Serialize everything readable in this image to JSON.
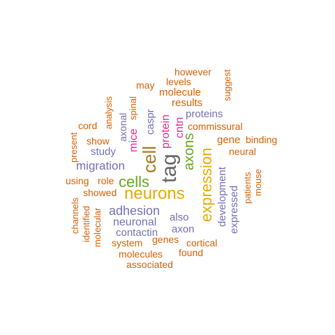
{
  "word_cloud": {
    "colors": {
      "orange": "#d95f02",
      "purple": "#7570b3",
      "magenta": "#e7298a",
      "green": "#66a61e",
      "gold": "#e6ab02",
      "brown": "#a6761d",
      "gray": "#666666"
    },
    "words": [
      {
        "text": "tag",
        "color": "gray",
        "rotated": true
      },
      {
        "text": "neurons",
        "color": "gold",
        "rotated": false
      },
      {
        "text": "expression",
        "color": "gold",
        "rotated": true
      },
      {
        "text": "cell",
        "color": "brown",
        "rotated": true
      },
      {
        "text": "cells",
        "color": "green",
        "rotated": false
      },
      {
        "text": "axons",
        "color": "green",
        "rotated": true
      },
      {
        "text": "adhesion",
        "color": "purple",
        "rotated": false
      },
      {
        "text": "migration",
        "color": "purple",
        "rotated": false
      },
      {
        "text": "mice",
        "color": "magenta",
        "rotated": true
      },
      {
        "text": "protein",
        "color": "magenta",
        "rotated": true
      },
      {
        "text": "cntn",
        "color": "magenta",
        "rotated": true
      },
      {
        "text": "neuronal",
        "color": "purple",
        "rotated": false
      },
      {
        "text": "contactin",
        "color": "purple",
        "rotated": false
      },
      {
        "text": "axon",
        "color": "purple",
        "rotated": false
      },
      {
        "text": "also",
        "color": "purple",
        "rotated": false
      },
      {
        "text": "development",
        "color": "purple",
        "rotated": true
      },
      {
        "text": "caspr",
        "color": "purple",
        "rotated": true
      },
      {
        "text": "axonal",
        "color": "purple",
        "rotated": true
      },
      {
        "text": "proteins",
        "color": "purple",
        "rotated": false
      },
      {
        "text": "expressed",
        "color": "purple",
        "rotated": true
      },
      {
        "text": "study",
        "color": "purple",
        "rotated": false
      },
      {
        "text": "molecule",
        "color": "orange",
        "rotated": false
      },
      {
        "text": "results",
        "color": "orange",
        "rotated": false
      },
      {
        "text": "commissural",
        "color": "orange",
        "rotated": false
      },
      {
        "text": "gene",
        "color": "orange",
        "rotated": false
      },
      {
        "text": "binding",
        "color": "orange",
        "rotated": false
      },
      {
        "text": "neural",
        "color": "orange",
        "rotated": false
      },
      {
        "text": "patients",
        "color": "orange",
        "rotated": true
      },
      {
        "text": "mouse",
        "color": "orange",
        "rotated": true
      },
      {
        "text": "however",
        "color": "orange",
        "rotated": false
      },
      {
        "text": "levels",
        "color": "orange",
        "rotated": false
      },
      {
        "text": "may",
        "color": "orange",
        "rotated": false
      },
      {
        "text": "spinal",
        "color": "orange",
        "rotated": true
      },
      {
        "text": "suggest",
        "color": "orange",
        "rotated": true
      },
      {
        "text": "analysis",
        "color": "orange",
        "rotated": true
      },
      {
        "text": "cord",
        "color": "orange",
        "rotated": false
      },
      {
        "text": "show",
        "color": "orange",
        "rotated": false
      },
      {
        "text": "present",
        "color": "orange",
        "rotated": true
      },
      {
        "text": "using",
        "color": "orange",
        "rotated": false
      },
      {
        "text": "role",
        "color": "orange",
        "rotated": false
      },
      {
        "text": "showed",
        "color": "orange",
        "rotated": false
      },
      {
        "text": "channels",
        "color": "orange",
        "rotated": true
      },
      {
        "text": "identified",
        "color": "orange",
        "rotated": true
      },
      {
        "text": "molecular",
        "color": "orange",
        "rotated": true
      },
      {
        "text": "system",
        "color": "orange",
        "rotated": false
      },
      {
        "text": "genes",
        "color": "orange",
        "rotated": false
      },
      {
        "text": "cortical",
        "color": "orange",
        "rotated": false
      },
      {
        "text": "molecules",
        "color": "orange",
        "rotated": false
      },
      {
        "text": "found",
        "color": "orange",
        "rotated": false
      },
      {
        "text": "associated",
        "color": "orange",
        "rotated": false
      }
    ]
  }
}
